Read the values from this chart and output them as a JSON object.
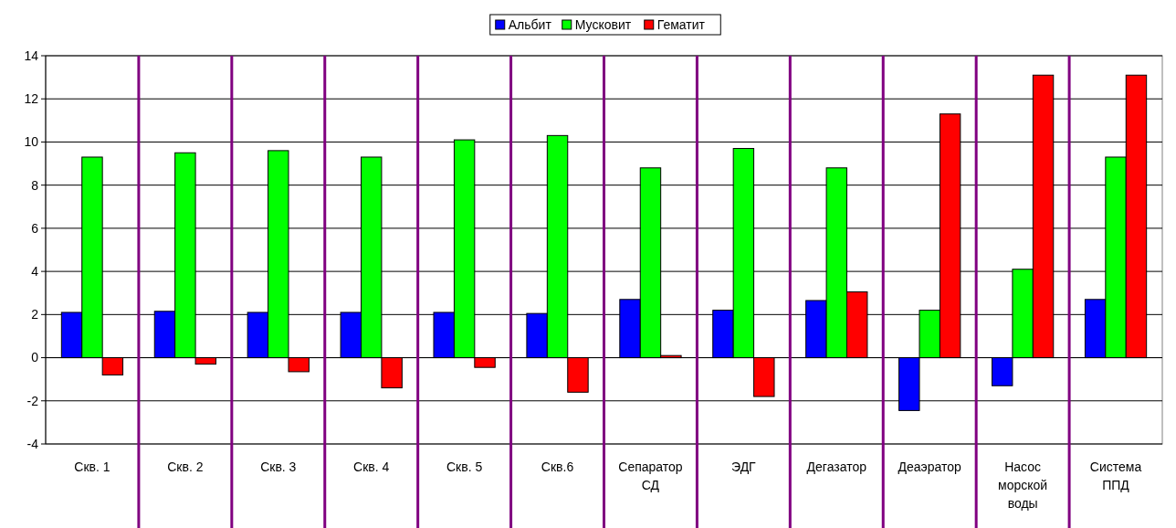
{
  "chart_data": {
    "type": "bar",
    "categories": [
      "Скв. 1",
      "Скв. 2",
      "Скв. 3",
      "Скв. 4",
      "Скв. 5",
      "Скв.6",
      "Сепаратор СД",
      "ЭДГ",
      "Дегазатор",
      "Деаэратор",
      "Насос морской воды",
      "Система ППД"
    ],
    "series": [
      {
        "name": "Альбит",
        "color": "#0000ff",
        "values": [
          2.1,
          2.15,
          2.1,
          2.1,
          2.1,
          2.05,
          2.7,
          2.2,
          2.65,
          -2.45,
          -1.3,
          2.7
        ]
      },
      {
        "name": "Мусковит",
        "color": "#00ff00",
        "values": [
          9.3,
          9.5,
          9.6,
          9.3,
          10.1,
          10.3,
          8.8,
          9.7,
          8.8,
          2.2,
          4.1,
          9.3
        ]
      },
      {
        "name": "Гематит",
        "color": "#ff0000",
        "values": [
          -0.8,
          -0.3,
          -0.65,
          -1.4,
          -0.45,
          -1.6,
          0.1,
          -1.8,
          3.05,
          11.3,
          13.1,
          13.1
        ]
      }
    ],
    "ylim": [
      -4,
      14
    ],
    "yticks": [
      -4,
      -2,
      0,
      2,
      4,
      6,
      8,
      10,
      12,
      14
    ],
    "grid": "y",
    "legend": "top"
  }
}
